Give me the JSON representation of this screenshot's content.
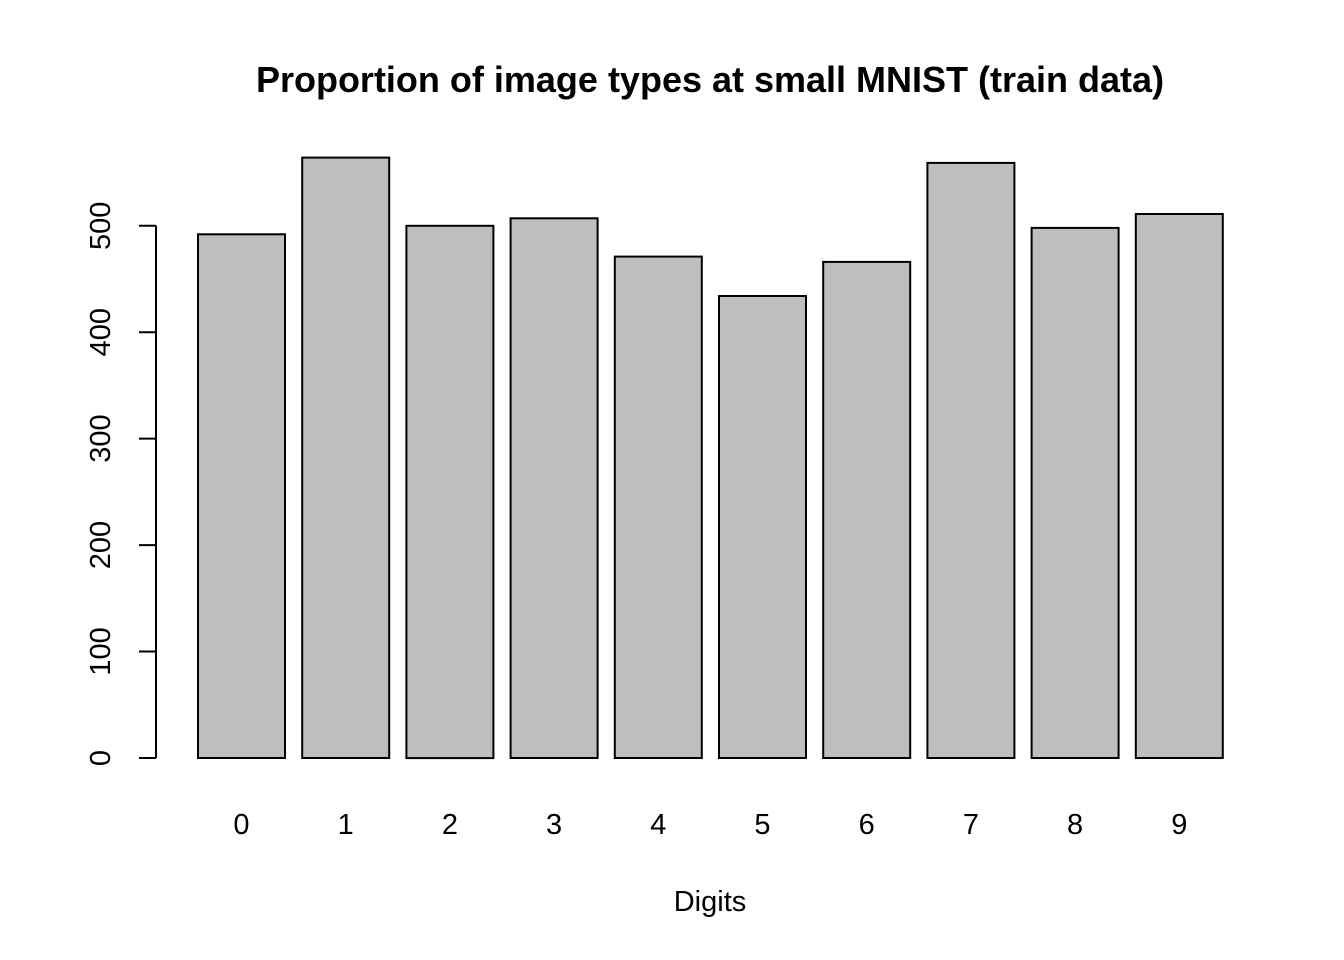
{
  "chart_data": {
    "type": "bar",
    "title": "Proportion of image types at small MNIST (train data)",
    "xlabel": "Digits",
    "ylabel": "",
    "categories": [
      "0",
      "1",
      "2",
      "3",
      "4",
      "5",
      "6",
      "7",
      "8",
      "9"
    ],
    "values": [
      492,
      564,
      500,
      507,
      471,
      434,
      466,
      559,
      498,
      511
    ],
    "ylim": [
      0,
      564
    ],
    "yticks": [
      "0",
      "100",
      "200",
      "300",
      "400",
      "500"
    ],
    "bar_color": "#bebebe",
    "grid": false,
    "legend": "none"
  }
}
